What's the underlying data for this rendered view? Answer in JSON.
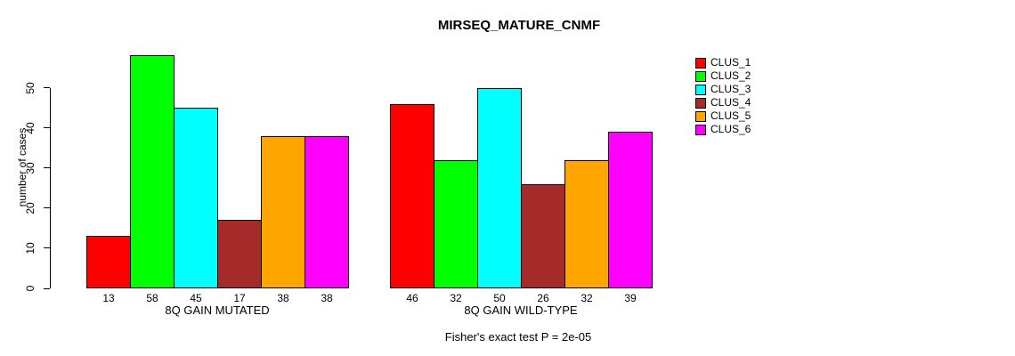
{
  "chart_data": {
    "type": "bar",
    "title": "MIRSEQ_MATURE_CNMF",
    "ylabel": "number of cases",
    "annotation": "Fisher's exact test P = 2e-05",
    "categories": [
      "8Q GAIN MUTATED",
      "8Q GAIN WILD-TYPE"
    ],
    "series": [
      {
        "name": "CLUS_1",
        "color": "#FF0000",
        "values": [
          13,
          46
        ]
      },
      {
        "name": "CLUS_2",
        "color": "#00FF00",
        "values": [
          58,
          32
        ]
      },
      {
        "name": "CLUS_3",
        "color": "#00FFFF",
        "values": [
          45,
          50
        ]
      },
      {
        "name": "CLUS_4",
        "color": "#A52A2A",
        "values": [
          17,
          26
        ]
      },
      {
        "name": "CLUS_5",
        "color": "#FFA500",
        "values": [
          38,
          32
        ]
      },
      {
        "name": "CLUS_6",
        "color": "#FF00FF",
        "values": [
          38,
          39
        ]
      }
    ],
    "yticks": [
      0,
      10,
      20,
      30,
      40,
      50
    ],
    "ylim": [
      0,
      58
    ],
    "grid": false,
    "legend_position": "right",
    "bar_value_labels_shown": true,
    "background_color": "#FFFFFF",
    "axis_color": "#000000"
  }
}
